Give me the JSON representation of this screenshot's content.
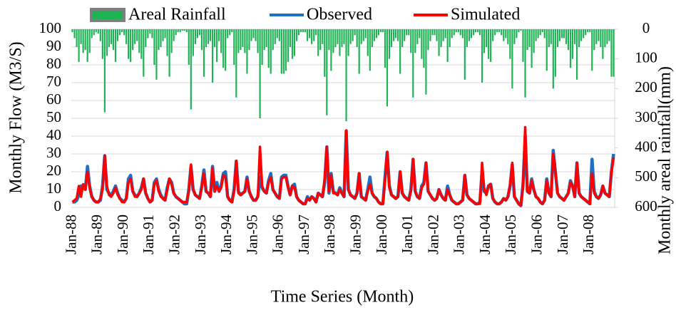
{
  "chart_data": {
    "type": "line",
    "y_label": "Monthly Flow (M3/S)",
    "y2_label": "Monthly areal rainfall(mm)",
    "x_label": "Time Series (Month)",
    "ylim": [
      0,
      100
    ],
    "yticks": [
      0,
      10,
      20,
      30,
      40,
      50,
      60,
      70,
      80,
      90,
      100
    ],
    "y2lim": [
      600,
      0
    ],
    "y2ticks": [
      0,
      100,
      200,
      300,
      400,
      500,
      600
    ],
    "grid": true,
    "legend": "top",
    "categories": [
      "Jan-88",
      null,
      null,
      null,
      null,
      null,
      null,
      null,
      null,
      null,
      null,
      null,
      "Jan-89",
      null,
      null,
      null,
      null,
      null,
      null,
      null,
      null,
      null,
      null,
      null,
      "Jan-90",
      null,
      null,
      null,
      null,
      null,
      null,
      null,
      null,
      null,
      null,
      null,
      "Jan-91",
      null,
      null,
      null,
      null,
      null,
      null,
      null,
      null,
      null,
      null,
      null,
      "Jan-92",
      null,
      null,
      null,
      null,
      null,
      null,
      null,
      null,
      null,
      null,
      null,
      "Jan-93",
      null,
      null,
      null,
      null,
      null,
      null,
      null,
      null,
      null,
      null,
      null,
      "Jan-94",
      null,
      null,
      null,
      null,
      null,
      null,
      null,
      null,
      null,
      null,
      null,
      "Jan-95",
      null,
      null,
      null,
      null,
      null,
      null,
      null,
      null,
      null,
      null,
      null,
      "Jan-96",
      null,
      null,
      null,
      null,
      null,
      null,
      null,
      null,
      null,
      null,
      null,
      "Jan-97",
      null,
      null,
      null,
      null,
      null,
      null,
      null,
      null,
      null,
      null,
      null,
      "Jan-98",
      null,
      null,
      null,
      null,
      null,
      null,
      null,
      null,
      null,
      null,
      null,
      "Jan-99",
      null,
      null,
      null,
      null,
      null,
      null,
      null,
      null,
      null,
      null,
      null,
      "Jan-00",
      null,
      null,
      null,
      null,
      null,
      null,
      null,
      null,
      null,
      null,
      null,
      "Jan-01",
      null,
      null,
      null,
      null,
      null,
      null,
      null,
      null,
      null,
      null,
      null,
      "Jan-02",
      null,
      null,
      null,
      null,
      null,
      null,
      null,
      null,
      null,
      null,
      null,
      "Jan-03",
      null,
      null,
      null,
      null,
      null,
      null,
      null,
      null,
      null,
      null,
      null,
      "Jan-04",
      null,
      null,
      null,
      null,
      null,
      null,
      null,
      null,
      null,
      null,
      null,
      "Jan-05",
      null,
      null,
      null,
      null,
      null,
      null,
      null,
      null,
      null,
      null,
      null,
      "Jan-06",
      null,
      null,
      null,
      null,
      null,
      null,
      null,
      null,
      null,
      null,
      null,
      "Jan-07",
      null,
      null,
      null,
      null,
      null,
      null,
      null,
      null,
      null,
      null,
      null,
      "Jan-08",
      null,
      null,
      null,
      null,
      null,
      null,
      null,
      null,
      null,
      null,
      null
    ],
    "series": [
      {
        "name": "Areal Rainfall",
        "type": "bar",
        "axis": "y2",
        "color": "#1db254",
        "edge": "#7f7f7f",
        "values": [
          10,
          30,
          60,
          110,
          50,
          80,
          70,
          110,
          80,
          30,
          20,
          10,
          15,
          40,
          100,
          280,
          90,
          60,
          50,
          70,
          110,
          40,
          20,
          10,
          20,
          50,
          100,
          110,
          70,
          50,
          40,
          80,
          100,
          160,
          60,
          30,
          15,
          30,
          120,
          170,
          70,
          60,
          40,
          30,
          90,
          160,
          80,
          40,
          20,
          10,
          10,
          5,
          5,
          10,
          120,
          270,
          90,
          50,
          30,
          20,
          70,
          160,
          60,
          50,
          40,
          180,
          60,
          110,
          40,
          80,
          130,
          140,
          30,
          20,
          10,
          120,
          230,
          80,
          70,
          60,
          80,
          150,
          70,
          40,
          30,
          40,
          80,
          300,
          120,
          70,
          60,
          130,
          150,
          70,
          50,
          30,
          40,
          150,
          150,
          140,
          110,
          60,
          100,
          90,
          40,
          20,
          10,
          10,
          10,
          40,
          30,
          50,
          40,
          20,
          90,
          70,
          50,
          160,
          290,
          70,
          140,
          80,
          60,
          50,
          90,
          60,
          50,
          310,
          90,
          50,
          40,
          20,
          60,
          150,
          50,
          40,
          30,
          90,
          140,
          60,
          40,
          30,
          20,
          10,
          10,
          130,
          260,
          100,
          60,
          40,
          30,
          40,
          150,
          60,
          40,
          20,
          20,
          80,
          230,
          80,
          50,
          30,
          100,
          130,
          220,
          70,
          40,
          20,
          20,
          40,
          90,
          60,
          40,
          30,
          110,
          60,
          30,
          20,
          10,
          10,
          20,
          30,
          170,
          60,
          40,
          30,
          20,
          10,
          10,
          20,
          180,
          80,
          60,
          100,
          110,
          40,
          20,
          10,
          10,
          20,
          40,
          30,
          50,
          100,
          200,
          50,
          30,
          10,
          5,
          110,
          230,
          70,
          60,
          130,
          80,
          40,
          30,
          20,
          10,
          30,
          140,
          60,
          50,
          200,
          160,
          60,
          40,
          30,
          30,
          50,
          70,
          130,
          100,
          50,
          170,
          60,
          40,
          30,
          20,
          10,
          10,
          140,
          70,
          50,
          40,
          60,
          100,
          60,
          50,
          40,
          160,
          160
        ]
      },
      {
        "name": "Observed",
        "type": "line",
        "axis": "y",
        "color": "#1f6fc5",
        "width": 4.5,
        "values": [
          3,
          3,
          4,
          7,
          12,
          12,
          10,
          23,
          12,
          6,
          4,
          3,
          3,
          4,
          12,
          29,
          10,
          8,
          7,
          9,
          12,
          8,
          5,
          4,
          3,
          5,
          16,
          18,
          9,
          7,
          6,
          8,
          11,
          16,
          8,
          5,
          3,
          4,
          14,
          16,
          10,
          7,
          5,
          4,
          11,
          16,
          14,
          8,
          6,
          5,
          4,
          3,
          2,
          2,
          10,
          23,
          10,
          7,
          6,
          5,
          12,
          21,
          9,
          8,
          6,
          23,
          9,
          14,
          9,
          12,
          19,
          20,
          6,
          4,
          3,
          10,
          26,
          9,
          7,
          8,
          9,
          17,
          9,
          6,
          4,
          4,
          6,
          17,
          11,
          9,
          8,
          15,
          19,
          10,
          8,
          6,
          5,
          17,
          18,
          18,
          12,
          7,
          12,
          13,
          6,
          4,
          3,
          2,
          2,
          6,
          4,
          6,
          5,
          3,
          8,
          7,
          6,
          14,
          34,
          8,
          19,
          9,
          8,
          7,
          11,
          8,
          6,
          43,
          10,
          7,
          6,
          5,
          8,
          19,
          6,
          5,
          4,
          10,
          17,
          8,
          6,
          5,
          3,
          2,
          2,
          17,
          31,
          12,
          7,
          6,
          5,
          6,
          20,
          8,
          6,
          5,
          4,
          10,
          27,
          9,
          6,
          5,
          12,
          14,
          25,
          9,
          7,
          5,
          4,
          5,
          10,
          7,
          5,
          4,
          12,
          7,
          4,
          3,
          2,
          2,
          3,
          4,
          18,
          7,
          5,
          4,
          3,
          2,
          2,
          3,
          20,
          9,
          8,
          12,
          13,
          5,
          3,
          2,
          2,
          3,
          5,
          4,
          6,
          12,
          24,
          6,
          4,
          2,
          1,
          13,
          40,
          9,
          8,
          16,
          10,
          6,
          5,
          3,
          2,
          4,
          16,
          8,
          6,
          32,
          20,
          8,
          6,
          5,
          4,
          6,
          8,
          15,
          12,
          6,
          25,
          8,
          6,
          5,
          4,
          3,
          2,
          27,
          9,
          6,
          5,
          7,
          12,
          8,
          7,
          6,
          20,
          30
        ]
      },
      {
        "name": "Simulated",
        "type": "line",
        "axis": "y",
        "color": "#ff0000",
        "width": 3.5,
        "values": [
          3,
          4,
          5,
          12,
          6,
          13,
          10,
          20,
          11,
          6,
          4,
          3,
          3,
          5,
          10,
          29,
          12,
          7,
          6,
          8,
          11,
          7,
          5,
          3,
          3,
          5,
          14,
          16,
          9,
          6,
          6,
          8,
          10,
          16,
          8,
          5,
          3,
          4,
          13,
          15,
          9,
          6,
          5,
          4,
          10,
          16,
          13,
          8,
          6,
          5,
          4,
          3,
          3,
          3,
          9,
          24,
          10,
          7,
          6,
          5,
          11,
          19,
          9,
          8,
          6,
          22,
          9,
          12,
          9,
          11,
          18,
          17,
          6,
          4,
          3,
          9,
          26,
          8,
          7,
          8,
          9,
          16,
          9,
          6,
          4,
          4,
          6,
          34,
          12,
          9,
          8,
          14,
          17,
          10,
          8,
          6,
          5,
          16,
          17,
          17,
          11,
          7,
          12,
          11,
          6,
          4,
          3,
          2,
          2,
          5,
          4,
          6,
          5,
          3,
          8,
          7,
          6,
          16,
          34,
          9,
          18,
          8,
          8,
          7,
          10,
          8,
          6,
          43,
          10,
          7,
          6,
          5,
          8,
          19,
          6,
          5,
          4,
          9,
          13,
          8,
          6,
          5,
          3,
          2,
          2,
          15,
          31,
          11,
          7,
          6,
          5,
          6,
          20,
          8,
          6,
          5,
          4,
          9,
          27,
          9,
          6,
          5,
          11,
          13,
          25,
          9,
          7,
          5,
          4,
          5,
          10,
          7,
          5,
          4,
          10,
          7,
          4,
          3,
          2,
          2,
          3,
          4,
          18,
          7,
          5,
          4,
          3,
          2,
          2,
          2,
          25,
          10,
          7,
          12,
          13,
          5,
          3,
          2,
          2,
          3,
          5,
          4,
          6,
          13,
          25,
          6,
          4,
          2,
          1,
          12,
          45,
          9,
          8,
          15,
          10,
          6,
          5,
          3,
          2,
          4,
          15,
          8,
          6,
          30,
          20,
          8,
          6,
          5,
          4,
          6,
          8,
          14,
          12,
          6,
          25,
          8,
          6,
          5,
          4,
          3,
          2,
          19,
          8,
          6,
          5,
          7,
          12,
          8,
          7,
          6,
          20,
          28
        ]
      }
    ]
  }
}
